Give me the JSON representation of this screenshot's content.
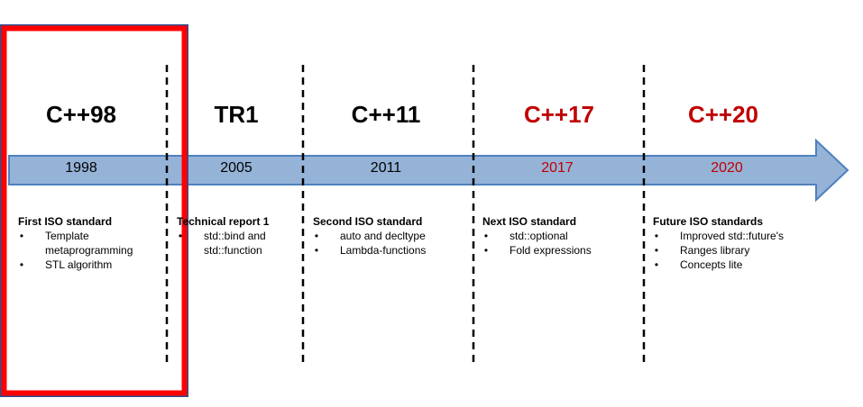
{
  "colors": {
    "arrow_fill": "#95b3d7",
    "arrow_stroke": "#4f81bd",
    "highlight_outer": "#2f4f8f",
    "highlight_inner": "#ff0000",
    "future_text": "#c00000",
    "past_text": "#000000"
  },
  "timeline": [
    {
      "title": "C++98",
      "year": "1998",
      "future": false,
      "description_title": "First ISO standard",
      "items": [
        "Template metaprogramming",
        "STL algorithm"
      ]
    },
    {
      "title": "TR1",
      "year": "2005",
      "future": false,
      "description_title": "Technical report 1",
      "items": [
        "std::bind and std::function"
      ]
    },
    {
      "title": "C++11",
      "year": "2011",
      "future": false,
      "description_title": "Second ISO standard",
      "items": [
        "auto and decltype",
        "Lambda-functions"
      ]
    },
    {
      "title": "C++17",
      "year": "2017",
      "future": true,
      "description_title": "Next ISO standard",
      "items": [
        "std::optional",
        "Fold expressions"
      ]
    },
    {
      "title": "C++20",
      "year": "2020",
      "future": true,
      "description_title": "Future ISO standards",
      "items": [
        "Improved  std::future's",
        "Ranges library",
        "Concepts lite"
      ]
    }
  ],
  "bullet_char": "•"
}
